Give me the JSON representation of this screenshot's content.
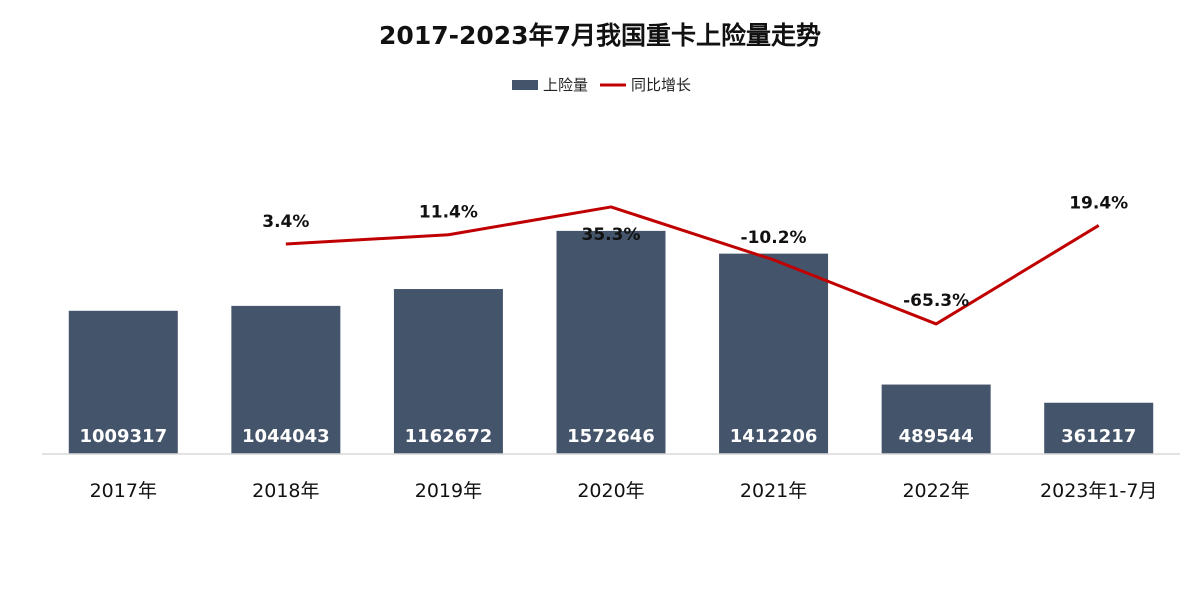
{
  "chart_data": {
    "type": "bar",
    "title": "2017-2023年7月我国重卡上险量走势",
    "categories": [
      "2017年",
      "2018年",
      "2019年",
      "2020年",
      "2021年",
      "2022年",
      "2023年1-7月"
    ],
    "series": [
      {
        "name": "上险量",
        "type": "bar",
        "color": "#44546A",
        "values": [
          1009317,
          1044043,
          1162672,
          1572646,
          1412206,
          489544,
          361217
        ]
      },
      {
        "name": "同比增长",
        "type": "line",
        "color": "#C00000",
        "values": [
          null,
          3.4,
          11.4,
          35.3,
          -10.2,
          -65.3,
          19.4
        ],
        "labels": [
          "",
          "3.4%",
          "11.4%",
          "35.3%",
          "-10.2%",
          "-65.3%",
          "19.4%"
        ]
      }
    ],
    "legend": {
      "position": "top",
      "items": [
        "上险量",
        "同比增长"
      ]
    },
    "grid": false,
    "xlabel": "",
    "ylabel": ""
  }
}
